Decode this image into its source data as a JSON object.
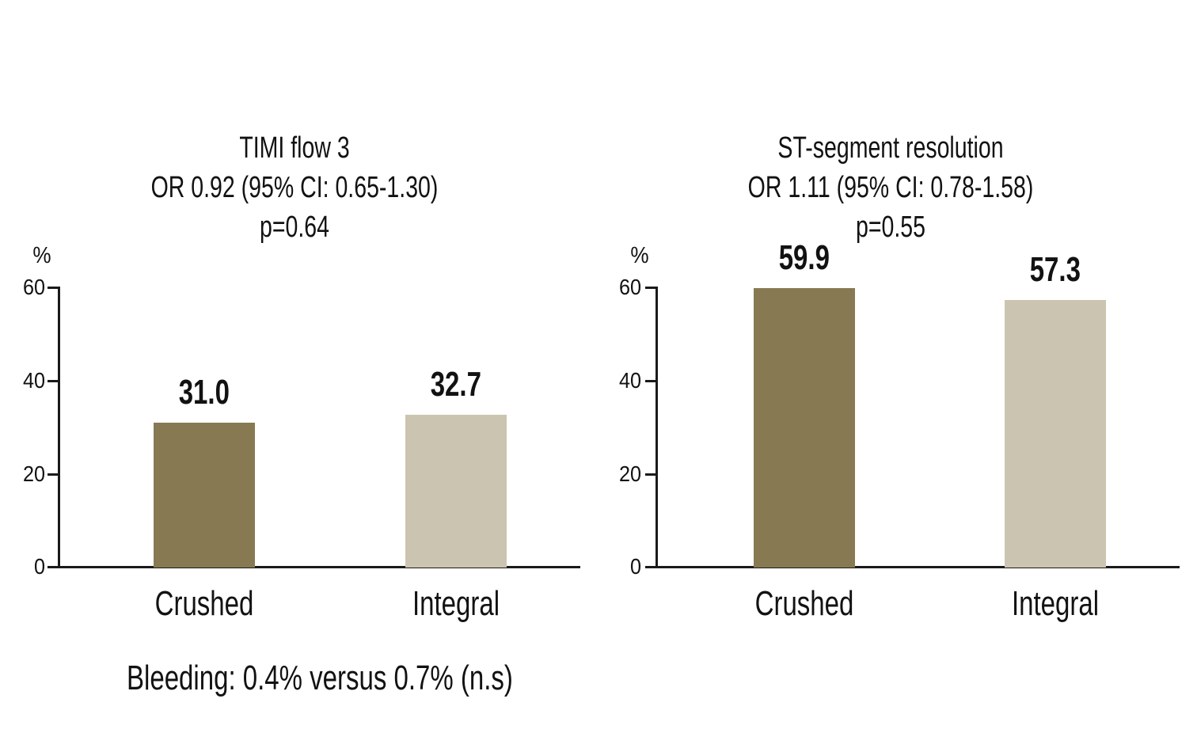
{
  "figure": {
    "background": "#FFFFFF",
    "footnote": "Bleeding: 0.4% versus 0.7% (n.s)"
  },
  "colors": {
    "crushed_bar": "#877A52",
    "integral_bar": "#CBC4B0",
    "axis": "#1A1A1A",
    "text": "#121212"
  },
  "chart_data": [
    {
      "type": "bar",
      "title": "TIMI flow 3",
      "subtitle": "OR 0.92 (95% CI: 0.65-1.30)",
      "p_value": "p=0.64",
      "ylabel": "%",
      "categories": [
        "Crushed",
        "Integral"
      ],
      "values": [
        31.0,
        32.7
      ],
      "value_labels": [
        "31.0",
        "32.7"
      ],
      "bar_colors": [
        "#877A52",
        "#CBC4B0"
      ],
      "ylim": [
        0,
        60
      ],
      "yticks": [
        0,
        20,
        40,
        60
      ],
      "tick_labels": [
        "60",
        "40",
        "20",
        "0"
      ],
      "grid": false,
      "legend": "none"
    },
    {
      "type": "bar",
      "title": "ST-segment resolution",
      "subtitle": "OR 1.11 (95% CI: 0.78-1.58)",
      "p_value": "p=0.55",
      "ylabel": "%",
      "categories": [
        "Crushed",
        "Integral"
      ],
      "values": [
        59.9,
        57.3
      ],
      "value_labels": [
        "59.9",
        "57.3"
      ],
      "bar_colors": [
        "#877A52",
        "#CBC4B0"
      ],
      "ylim": [
        0,
        60
      ],
      "yticks": [
        0,
        20,
        40,
        60
      ],
      "tick_labels": [
        "60",
        "40",
        "20",
        "0"
      ],
      "grid": false,
      "legend": "none"
    }
  ]
}
